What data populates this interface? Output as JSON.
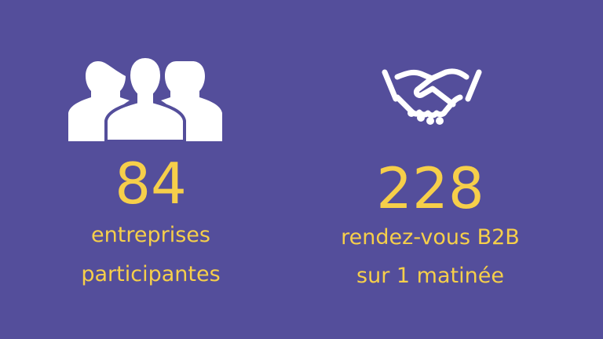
{
  "stats": [
    {
      "value": 84,
      "lines": [
        "entreprises",
        "participantes"
      ]
    },
    {
      "value": 228,
      "lines": [
        "rendez-vous B2B",
        "sur 1 matinée"
      ]
    }
  ]
}
